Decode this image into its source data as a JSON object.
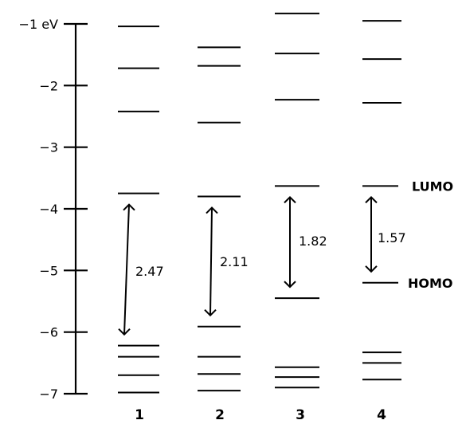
{
  "axis": {
    "ticks": [
      {
        "value": -1,
        "label": "−1 eV"
      },
      {
        "value": -2,
        "label": "−2"
      },
      {
        "value": -3,
        "label": "−3"
      },
      {
        "value": -4,
        "label": "−4"
      },
      {
        "value": -5,
        "label": "−5"
      },
      {
        "value": -6,
        "label": "−6"
      },
      {
        "value": -7,
        "label": "−7"
      }
    ],
    "range": [
      -7,
      -1
    ]
  },
  "compounds": [
    {
      "label": "1",
      "levels": [
        -1.04,
        -1.72,
        -2.42,
        -3.75,
        -6.22,
        -6.4,
        -6.7,
        -6.98
      ],
      "lumo": -3.75,
      "homo": -6.22,
      "gap_label": "2.47"
    },
    {
      "label": "2",
      "levels": [
        -1.38,
        -1.68,
        -2.6,
        -3.8,
        -5.91,
        -6.4,
        -6.68,
        -6.95
      ],
      "lumo": -3.8,
      "homo": -5.91,
      "gap_label": "2.11"
    },
    {
      "label": "3",
      "levels": [
        -0.83,
        -1.48,
        -2.23,
        -3.63,
        -5.45,
        -6.57,
        -6.73,
        -6.9
      ],
      "lumo": -3.63,
      "homo": -5.45,
      "gap_label": "1.82"
    },
    {
      "label": "4",
      "levels": [
        -0.95,
        -1.57,
        -2.28,
        -3.63,
        -5.2,
        -6.33,
        -6.5,
        -6.77
      ],
      "lumo": -3.63,
      "homo": -5.2,
      "gap_label": "1.57"
    }
  ],
  "orbital_labels": {
    "lumo": "LUMO",
    "homo": "HOMO"
  }
}
